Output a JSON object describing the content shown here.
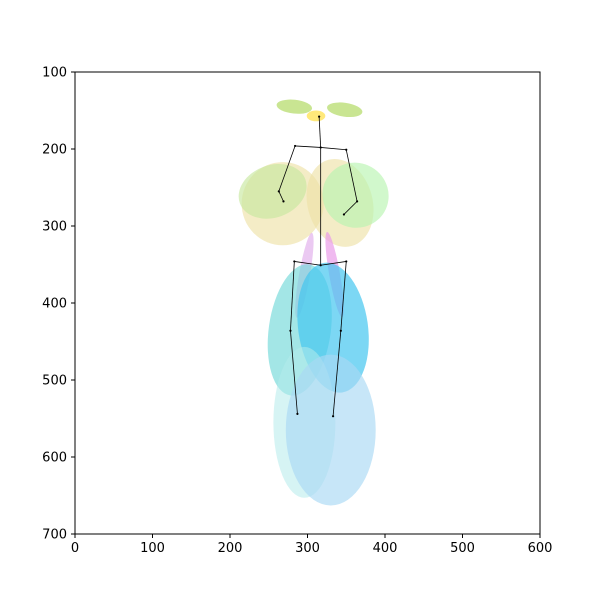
{
  "chart_data": {
    "type": "scatter",
    "title": "",
    "xlabel": "",
    "ylabel": "",
    "xlim": [
      0,
      600
    ],
    "ylim": [
      700,
      100
    ],
    "y_inverted": true,
    "grid": false,
    "xticks": [
      0,
      100,
      200,
      300,
      400,
      500,
      600
    ],
    "yticks": [
      100,
      200,
      300,
      400,
      500,
      600,
      700
    ],
    "xtick_labels": [
      "0",
      "100",
      "200",
      "300",
      "400",
      "500",
      "600"
    ],
    "ytick_labels": [
      "100",
      "200",
      "300",
      "400",
      "500",
      "600",
      "700"
    ],
    "ellipses": [
      {
        "name": "head",
        "cx": 311,
        "cy": 157,
        "rx": 12,
        "ry": 7,
        "angle": 0,
        "color": "#FFE14D",
        "opacity": 0.75
      },
      {
        "name": "left-shoulder",
        "cx": 283,
        "cy": 145,
        "rx": 23,
        "ry": 9,
        "angle": 6,
        "color": "#B7DC6E",
        "opacity": 0.75
      },
      {
        "name": "right-shoulder",
        "cx": 348,
        "cy": 149,
        "rx": 23,
        "ry": 9,
        "angle": 8,
        "color": "#B7DC6E",
        "opacity": 0.75
      },
      {
        "name": "left-upper-arm",
        "cx": 268,
        "cy": 271,
        "rx": 53,
        "ry": 54,
        "angle": 0,
        "color": "#EEE2A8",
        "opacity": 0.65
      },
      {
        "name": "left-forearm",
        "cx": 255,
        "cy": 255,
        "rx": 45,
        "ry": 34,
        "angle": -20,
        "color": "#C8E8A0",
        "opacity": 0.65
      },
      {
        "name": "right-upper-arm",
        "cx": 342,
        "cy": 270,
        "rx": 42,
        "ry": 58,
        "angle": -15,
        "color": "#EEE2A8",
        "opacity": 0.65
      },
      {
        "name": "right-forearm",
        "cx": 362,
        "cy": 260,
        "rx": 43,
        "ry": 42,
        "angle": 30,
        "color": "#B8F5B0",
        "opacity": 0.65
      },
      {
        "name": "left-hip",
        "cx": 296,
        "cy": 364,
        "rx": 7,
        "ry": 56,
        "angle": 10,
        "color": "#E3B2EC",
        "opacity": 0.7
      },
      {
        "name": "right-hip",
        "cx": 335,
        "cy": 363,
        "rx": 7,
        "ry": 56,
        "angle": -10,
        "color": "#EA9CEA",
        "opacity": 0.7
      },
      {
        "name": "left-thigh",
        "cx": 290,
        "cy": 435,
        "rx": 40,
        "ry": 86,
        "angle": 8,
        "color": "#72D8D8",
        "opacity": 0.65
      },
      {
        "name": "right-thigh",
        "cx": 333,
        "cy": 432,
        "rx": 45,
        "ry": 85,
        "angle": -8,
        "color": "#44C6F0",
        "opacity": 0.7
      },
      {
        "name": "left-shin",
        "cx": 296,
        "cy": 555,
        "rx": 40,
        "ry": 98,
        "angle": 0,
        "color": "#B5EBEB",
        "opacity": 0.55
      },
      {
        "name": "right-shin",
        "cx": 330,
        "cy": 565,
        "rx": 58,
        "ry": 98,
        "angle": 0,
        "color": "#A9D8F5",
        "opacity": 0.65
      }
    ],
    "joints": [
      {
        "name": "head-top",
        "x": 315,
        "y": 158
      },
      {
        "name": "neck",
        "x": 317,
        "y": 198
      },
      {
        "name": "left-shoulder",
        "x": 284,
        "y": 196
      },
      {
        "name": "left-elbow",
        "x": 263,
        "y": 255
      },
      {
        "name": "left-wrist",
        "x": 269,
        "y": 268
      },
      {
        "name": "right-shoulder",
        "x": 350,
        "y": 201
      },
      {
        "name": "right-elbow",
        "x": 364,
        "y": 268
      },
      {
        "name": "right-wrist",
        "x": 347,
        "y": 285
      },
      {
        "name": "pelvis",
        "x": 317,
        "y": 351
      },
      {
        "name": "left-hip",
        "x": 283,
        "y": 346
      },
      {
        "name": "left-knee",
        "x": 278,
        "y": 436
      },
      {
        "name": "left-ankle",
        "x": 287,
        "y": 544
      },
      {
        "name": "right-hip",
        "x": 350,
        "y": 346
      },
      {
        "name": "right-knee",
        "x": 343,
        "y": 436
      },
      {
        "name": "right-ankle",
        "x": 333,
        "y": 547
      }
    ],
    "bones": [
      [
        "head-top",
        "neck"
      ],
      [
        "neck",
        "left-shoulder"
      ],
      [
        "left-shoulder",
        "left-elbow"
      ],
      [
        "left-elbow",
        "left-wrist"
      ],
      [
        "neck",
        "right-shoulder"
      ],
      [
        "right-shoulder",
        "right-elbow"
      ],
      [
        "right-elbow",
        "right-wrist"
      ],
      [
        "neck",
        "pelvis"
      ],
      [
        "pelvis",
        "left-hip"
      ],
      [
        "left-hip",
        "left-knee"
      ],
      [
        "left-knee",
        "left-ankle"
      ],
      [
        "pelvis",
        "right-hip"
      ],
      [
        "right-hip",
        "right-knee"
      ],
      [
        "right-knee",
        "right-ankle"
      ]
    ],
    "skeleton_color": "#000000"
  }
}
